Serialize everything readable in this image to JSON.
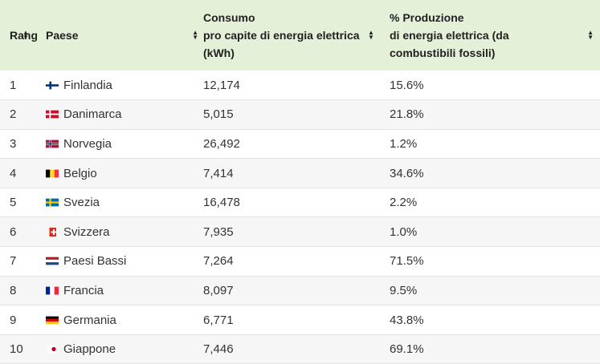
{
  "table": {
    "headers": {
      "rank": "Rango",
      "country": "Paese",
      "consumption_line1": "Consumo",
      "consumption_line2": "pro capite di energia elettrica",
      "consumption_line3": "(kWh)",
      "fossil_line1": "% Produzione",
      "fossil_line2": "di energia elettrica (da",
      "fossil_line3": "combustibili fossili)"
    },
    "rows": [
      {
        "rank": "1",
        "country": "Finlandia",
        "flag": "finland-flag",
        "consumption": "12,174",
        "fossil": "15.6%"
      },
      {
        "rank": "2",
        "country": "Danimarca",
        "flag": "denmark-flag",
        "consumption": "5,015",
        "fossil": "21.8%"
      },
      {
        "rank": "3",
        "country": "Norvegia",
        "flag": "norway-flag",
        "consumption": "26,492",
        "fossil": "1.2%"
      },
      {
        "rank": "4",
        "country": "Belgio",
        "flag": "belgium-flag",
        "consumption": "7,414",
        "fossil": "34.6%"
      },
      {
        "rank": "5",
        "country": "Svezia",
        "flag": "sweden-flag",
        "consumption": "16,478",
        "fossil": "2.2%"
      },
      {
        "rank": "6",
        "country": "Svizzera",
        "flag": "switzerland-flag",
        "consumption": "7,935",
        "fossil": "1.0%"
      },
      {
        "rank": "7",
        "country": "Paesi Bassi",
        "flag": "netherlands-flag",
        "consumption": "7,264",
        "fossil": "71.5%"
      },
      {
        "rank": "8",
        "country": "Francia",
        "flag": "france-flag",
        "consumption": "8,097",
        "fossil": "9.5%"
      },
      {
        "rank": "9",
        "country": "Germania",
        "flag": "germany-flag",
        "consumption": "6,771",
        "fossil": "43.8%"
      },
      {
        "rank": "10",
        "country": "Giappone",
        "flag": "japan-flag",
        "consumption": "7,446",
        "fossil": "69.1%"
      }
    ]
  },
  "colors": {
    "header_bg": "#e4f0d8",
    "stripe_bg": "#f6f6f6",
    "row_border": "#e3e3e3"
  }
}
